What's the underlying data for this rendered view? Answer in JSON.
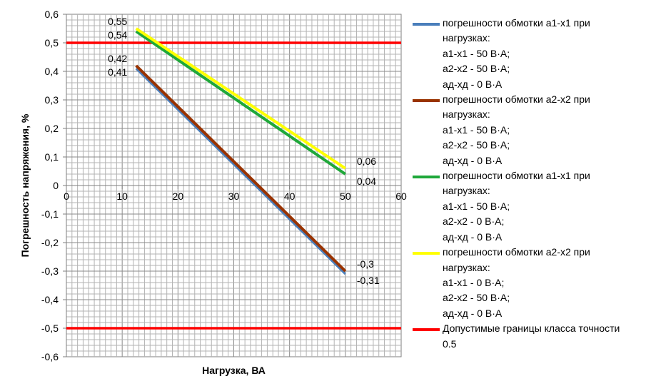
{
  "chart_data": {
    "type": "line",
    "xlabel": "Нагрузка, ВА",
    "ylabel": "Погрешность напряжения, %",
    "xlim": [
      0,
      60
    ],
    "ylim": [
      -0.6,
      0.6
    ],
    "x_ticks": [
      "0",
      "10",
      "20",
      "30",
      "40",
      "50",
      "60"
    ],
    "y_ticks": [
      "0,6",
      "0,5",
      "0,4",
      "0,3",
      "0,2",
      "0,1",
      "0",
      "-0,1",
      "-0,2",
      "-0,3",
      "-0,4",
      "-0,5",
      "-0,6"
    ],
    "grid": true,
    "legend_position": "right",
    "series": [
      {
        "name": "погрешности обмотки а1-х1 при нагрузках: а1-х1 - 50 В·А; а2-х2 - 50 В·А; ад-хд - 0 В·А",
        "legend_lines": [
          "погрешности обмотки а1-х1 при",
          "нагрузках:",
          "а1-х1 - 50 В·А;",
          "а2-х2 - 50 В·А;",
          "ад-хд - 0 В·А"
        ],
        "color": "#4a7ebb",
        "x": [
          12.5,
          50
        ],
        "y": [
          0.41,
          -0.31
        ],
        "labels": [
          "0,41",
          "-0,31"
        ]
      },
      {
        "name": "погрешности обмотки а2-х2 при нагрузках: а1-х1 - 50 В·А; а2-х2 - 50 В·А; ад-хд - 0 В·А",
        "legend_lines": [
          "погрешности обмотки а2-х2 при",
          "нагрузках:",
          "а1-х1 - 50 В·А;",
          "а2-х2 - 50 В·А;",
          "ад-хд - 0 В·А"
        ],
        "color": "#993300",
        "x": [
          12.5,
          50
        ],
        "y": [
          0.42,
          -0.3
        ],
        "labels": [
          "0,42",
          "-0,3"
        ]
      },
      {
        "name": "погрешности обмотки а1-х1 при нагрузках: а1-х1 - 50 В·А; а2-х2 - 0 В·А; ад-хд - 0 В·А",
        "legend_lines": [
          "погрешности обмотки а1-х1 при",
          "нагрузках:",
          "а1-х1 - 50 В·А;",
          "а2-х2 -  0 В·А;",
          "ад-хд - 0 В·А"
        ],
        "color": "#1fa83a",
        "x": [
          12.5,
          50
        ],
        "y": [
          0.54,
          0.04
        ],
        "labels": [
          "0,54",
          "0,04"
        ]
      },
      {
        "name": "погрешности обмотки а2-х2 при нагрузках: а1-х1 - 0 В·А; а2-х2 - 50 В·А; ад-хд - 0 В·А",
        "legend_lines": [
          "погрешности обмотки а2-х2 при",
          "нагрузках:",
          "а1-х1 -  0 В·А;",
          "а2-х2 -  50 В·А;",
          "ад-хд - 0 В·А"
        ],
        "color": "#ffff00",
        "x": [
          12.5,
          50
        ],
        "y": [
          0.55,
          0.06
        ],
        "labels": [
          "0,55",
          "0,06"
        ]
      }
    ],
    "limit_lines": {
      "name": "Допустимые границы класса точности 0.5",
      "legend_lines": [
        "Допустимые границы класса точности",
        "0.5"
      ],
      "color": "#ff0000",
      "values": [
        0.5,
        -0.5
      ]
    }
  }
}
